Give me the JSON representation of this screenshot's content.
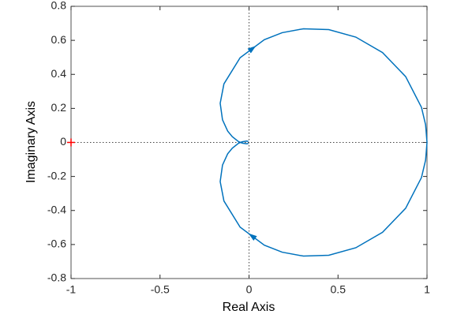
{
  "chart_data": {
    "type": "nyquist",
    "x_label": "Real Axis",
    "y_label": "Imaginary Axis",
    "xlim": [
      -1,
      1
    ],
    "ylim": [
      -0.8,
      0.8
    ],
    "xticks": [
      -1,
      -0.5,
      0,
      0.5,
      1
    ],
    "yticks": [
      -0.8,
      -0.6,
      -0.4,
      -0.2,
      0,
      0.2,
      0.4,
      0.6,
      0.8
    ],
    "critical_point": {
      "x": -1,
      "y": 0,
      "color": "#ff0000"
    },
    "series": [
      {
        "color": "#0072bd",
        "x": [
          1,
          0.992,
          0.969,
          0.88,
          0.75,
          0.6,
          0.448,
          0.306,
          0.186,
          0.086,
          -0.05,
          -0.141,
          -0.162,
          -0.149,
          -0.12,
          -0.094,
          -0.059,
          -0.038,
          -0.013,
          -0.0035
        ],
        "y": [
          0,
          -0.104,
          -0.206,
          -0.387,
          -0.528,
          -0.619,
          -0.663,
          -0.668,
          -0.645,
          -0.604,
          -0.498,
          -0.344,
          -0.23,
          -0.133,
          -0.067,
          -0.034,
          -0.005,
          0.004,
          0.008,
          0.0059
        ]
      },
      {
        "color": "#0072bd",
        "x": [
          1,
          0.992,
          0.969,
          0.88,
          0.75,
          0.6,
          0.448,
          0.306,
          0.186,
          0.086,
          -0.05,
          -0.141,
          -0.162,
          -0.149,
          -0.12,
          -0.094,
          -0.059,
          -0.038,
          -0.013,
          -0.0035
        ],
        "y": [
          0,
          0.104,
          0.206,
          0.387,
          0.528,
          0.619,
          0.663,
          0.668,
          0.645,
          0.604,
          0.498,
          0.344,
          0.23,
          0.133,
          0.067,
          0.034,
          0.005,
          -0.004,
          -0.008,
          -0.0059
        ]
      }
    ]
  }
}
